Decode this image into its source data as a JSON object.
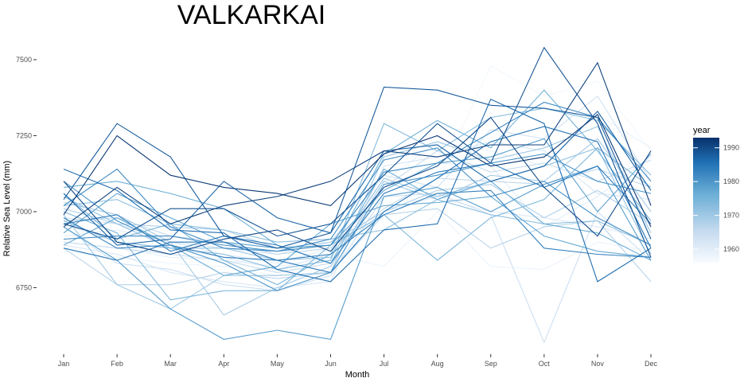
{
  "chart_data": {
    "type": "line",
    "title": "VALKARKAI",
    "xlabel": "Month",
    "ylabel": "Relative Sea Level (mm)",
    "categories": [
      "Jan",
      "Feb",
      "Mar",
      "Apr",
      "May",
      "Jun",
      "Jul",
      "Aug",
      "Sep",
      "Oct",
      "Nov",
      "Dec"
    ],
    "y_ticks": [
      "6750",
      "7000",
      "7250",
      "7500"
    ],
    "ylim": [
      6440,
      7560
    ],
    "grid": false,
    "legend": {
      "title": "year",
      "type": "colorbar",
      "position": "right",
      "range": [
        1956,
        1993
      ],
      "ticks": [
        "1960",
        "1970",
        "1980",
        "1990"
      ],
      "color_low": "#f7fbff",
      "color_high": "#08306b"
    },
    "series": [
      {
        "year": 1957,
        "values": [
          6940,
          6920,
          6880,
          6860,
          6840,
          6870,
          7050,
          7100,
          7480,
          7380,
          7430,
          7200
        ]
      },
      {
        "year": 1958,
        "values": [
          6870,
          6850,
          6830,
          6820,
          6790,
          6860,
          6820,
          7000,
          6820,
          6810,
          6900,
          6870
        ]
      },
      {
        "year": 1959,
        "values": [
          6900,
          6880,
          6850,
          6840,
          6820,
          6850,
          7100,
          7230,
          7200,
          7150,
          7320,
          7210
        ]
      },
      {
        "year": 1960,
        "values": [
          6920,
          6940,
          6900,
          6860,
          6830,
          6880,
          7080,
          7160,
          7150,
          6950,
          7050,
          7180
        ]
      },
      {
        "year": 1961,
        "values": [
          6960,
          6900,
          6880,
          6850,
          6810,
          6860,
          7000,
          7050,
          7000,
          6980,
          6950,
          6910
        ]
      },
      {
        "year": 1962,
        "values": [
          6890,
          6860,
          6800,
          6770,
          6750,
          6770,
          7150,
          7180,
          7230,
          7200,
          7060,
          7040
        ]
      },
      {
        "year": 1963,
        "values": [
          6980,
          6960,
          6900,
          6880,
          6860,
          6900,
          7120,
          7080,
          7270,
          7240,
          7380,
          7100
        ]
      },
      {
        "year": 1964,
        "values": [
          6950,
          6830,
          6810,
          6760,
          6740,
          6790,
          7050,
          7060,
          6990,
          6570,
          7000,
          6840
        ]
      },
      {
        "year": 1965,
        "values": [
          6900,
          6880,
          6860,
          6840,
          6800,
          6830,
          7080,
          7200,
          7130,
          7160,
          7100,
          7170
        ]
      },
      {
        "year": 1966,
        "values": [
          6970,
          6980,
          6920,
          6900,
          6860,
          6880,
          7010,
          7110,
          7100,
          7090,
          7140,
          7080
        ]
      },
      {
        "year": 1967,
        "values": [
          6880,
          6760,
          6760,
          6800,
          6780,
          6800,
          6990,
          7010,
          6880,
          6950,
          6970,
          6770
        ]
      },
      {
        "year": 1968,
        "values": [
          7010,
          6960,
          6950,
          6940,
          6880,
          6900,
          7000,
          7070,
          7090,
          6980,
          7070,
          6960
        ]
      },
      {
        "year": 1969,
        "values": [
          7030,
          6990,
          6900,
          6660,
          6750,
          6820,
          7100,
          7040,
          7120,
          7100,
          7240,
          7000
        ]
      },
      {
        "year": 1970,
        "values": [
          6990,
          6760,
          6680,
          6790,
          6790,
          6800,
          7180,
          7230,
          7170,
          7210,
          7280,
          6930
        ]
      },
      {
        "year": 1971,
        "values": [
          7050,
          6960,
          6880,
          6880,
          6840,
          6850,
          7110,
          7050,
          7100,
          7150,
          7210,
          6860
        ]
      },
      {
        "year": 1972,
        "values": [
          7020,
          7040,
          6960,
          6940,
          6900,
          6910,
          6940,
          7040,
          6990,
          6960,
          6970,
          6890
        ]
      },
      {
        "year": 1973,
        "values": [
          6970,
          6900,
          6880,
          6860,
          6810,
          6840,
          7290,
          7200,
          7310,
          7340,
          7300,
          7120
        ]
      },
      {
        "year": 1974,
        "values": [
          7000,
          6930,
          6710,
          6740,
          6740,
          6890,
          6990,
          6840,
          6980,
          7040,
          7210,
          7080
        ]
      },
      {
        "year": 1975,
        "values": [
          7060,
          6910,
          6960,
          6840,
          6760,
          6860,
          7190,
          7300,
          7210,
          7400,
          7200,
          6970
        ]
      },
      {
        "year": 1976,
        "values": [
          7080,
          7100,
          7060,
          7010,
          6890,
          6830,
          7140,
          7040,
          7100,
          6960,
          6930,
          6840
        ]
      },
      {
        "year": 1977,
        "values": [
          6890,
          6980,
          6890,
          6790,
          6820,
          6960,
          7020,
          7030,
          7050,
          6920,
          6870,
          6850
        ]
      },
      {
        "year": 1978,
        "values": [
          6930,
          7060,
          6980,
          6900,
          6880,
          6890,
          7070,
          7160,
          7180,
          7240,
          7000,
          7190
        ]
      },
      {
        "year": 1979,
        "values": [
          6950,
          6840,
          6680,
          6580,
          6610,
          6580,
          7050,
          7080,
          7000,
          7090,
          7150,
          6840
        ]
      },
      {
        "year": 1980,
        "values": [
          7100,
          6970,
          6890,
          6830,
          6740,
          6800,
          7090,
          7120,
          7160,
          7190,
          7100,
          7060
        ]
      },
      {
        "year": 1981,
        "values": [
          6910,
          6920,
          6920,
          6890,
          6870,
          6910,
          7170,
          7210,
          7050,
          7100,
          6980,
          6890
        ]
      },
      {
        "year": 1982,
        "values": [
          7020,
          7140,
          6950,
          6880,
          6870,
          6890,
          7130,
          7160,
          7260,
          7360,
          7310,
          7100
        ]
      },
      {
        "year": 1983,
        "values": [
          6980,
          6880,
          6890,
          6850,
          6840,
          6860,
          6990,
          7060,
          7070,
          6880,
          6860,
          6850
        ]
      },
      {
        "year": 1984,
        "values": [
          6960,
          6990,
          6870,
          6920,
          6890,
          6830,
          7060,
          7130,
          7160,
          7080,
          7150,
          6960
        ]
      },
      {
        "year": 1985,
        "values": [
          6880,
          6840,
          6900,
          6900,
          6840,
          6800,
          7000,
          7110,
          7230,
          7280,
          7230,
          6880
        ]
      },
      {
        "year": 1986,
        "values": [
          7140,
          7070,
          6940,
          6930,
          6810,
          6770,
          6940,
          6960,
          7370,
          7290,
          6770,
          6880
        ]
      },
      {
        "year": 1987,
        "values": [
          7060,
          6890,
          6910,
          7100,
          6980,
          6930,
          7200,
          7220,
          7100,
          7150,
          7330,
          7070
        ]
      },
      {
        "year": 1988,
        "values": [
          7040,
          7290,
          7180,
          6920,
          6880,
          6930,
          7410,
          7400,
          7350,
          7340,
          7310,
          6910
        ]
      },
      {
        "year": 1989,
        "values": [
          6960,
          6910,
          7010,
          7010,
          6920,
          6960,
          7120,
          7290,
          7160,
          7540,
          7290,
          6850
        ]
      },
      {
        "year": 1990,
        "values": [
          7100,
          6900,
          6860,
          6910,
          6940,
          6870,
          7080,
          7150,
          7310,
          7080,
          6920,
          7200
        ]
      },
      {
        "year": 1991,
        "values": [
          6950,
          7080,
          6960,
          7020,
          7050,
          7100,
          7200,
          7180,
          7220,
          7220,
          7490,
          7020
        ]
      },
      {
        "year": 1992,
        "values": [
          6990,
          7250,
          7120,
          7080,
          7060,
          7020,
          7190,
          7250,
          7150,
          7180,
          7320,
          6950
        ]
      }
    ]
  }
}
